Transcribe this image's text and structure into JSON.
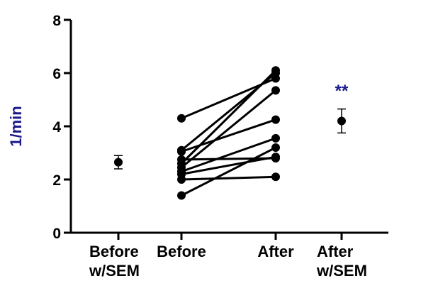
{
  "chart_data": {
    "type": "scatter",
    "ylabel": "1/min",
    "ylim": [
      0,
      8
    ],
    "yticks": [
      0,
      2,
      4,
      6,
      8
    ],
    "categories": [
      "Before w/SEM",
      "Before",
      "After",
      "After w/SEM"
    ],
    "category_labels": [
      [
        "Before",
        "w/SEM"
      ],
      [
        "Before"
      ],
      [
        "After"
      ],
      [
        "After",
        "w/SEM"
      ]
    ],
    "paired": [
      {
        "before": 1.4,
        "after": 3.2
      },
      {
        "before": 2.0,
        "after": 2.1
      },
      {
        "before": 2.2,
        "after": 2.85
      },
      {
        "before": 2.3,
        "after": 3.55
      },
      {
        "before": 2.45,
        "after": 5.35
      },
      {
        "before": 2.6,
        "after": 6.1
      },
      {
        "before": 2.75,
        "after": 2.8
      },
      {
        "before": 3.05,
        "after": 4.25
      },
      {
        "before": 3.1,
        "after": 6.0
      },
      {
        "before": 4.3,
        "after": 5.8
      }
    ],
    "summary": [
      {
        "category": "Before w/SEM",
        "mean": 2.65,
        "sem_low": 2.4,
        "sem_high": 2.9
      },
      {
        "category": "After w/SEM",
        "mean": 4.2,
        "sem_low": 3.75,
        "sem_high": 4.65
      }
    ],
    "annotation": {
      "text": "**",
      "category": "After w/SEM",
      "y": 5.5
    },
    "colors": {
      "points": "#000000",
      "ylabel": "#1a1a8a",
      "annotation": "#1a1a8a"
    },
    "grid": false
  }
}
